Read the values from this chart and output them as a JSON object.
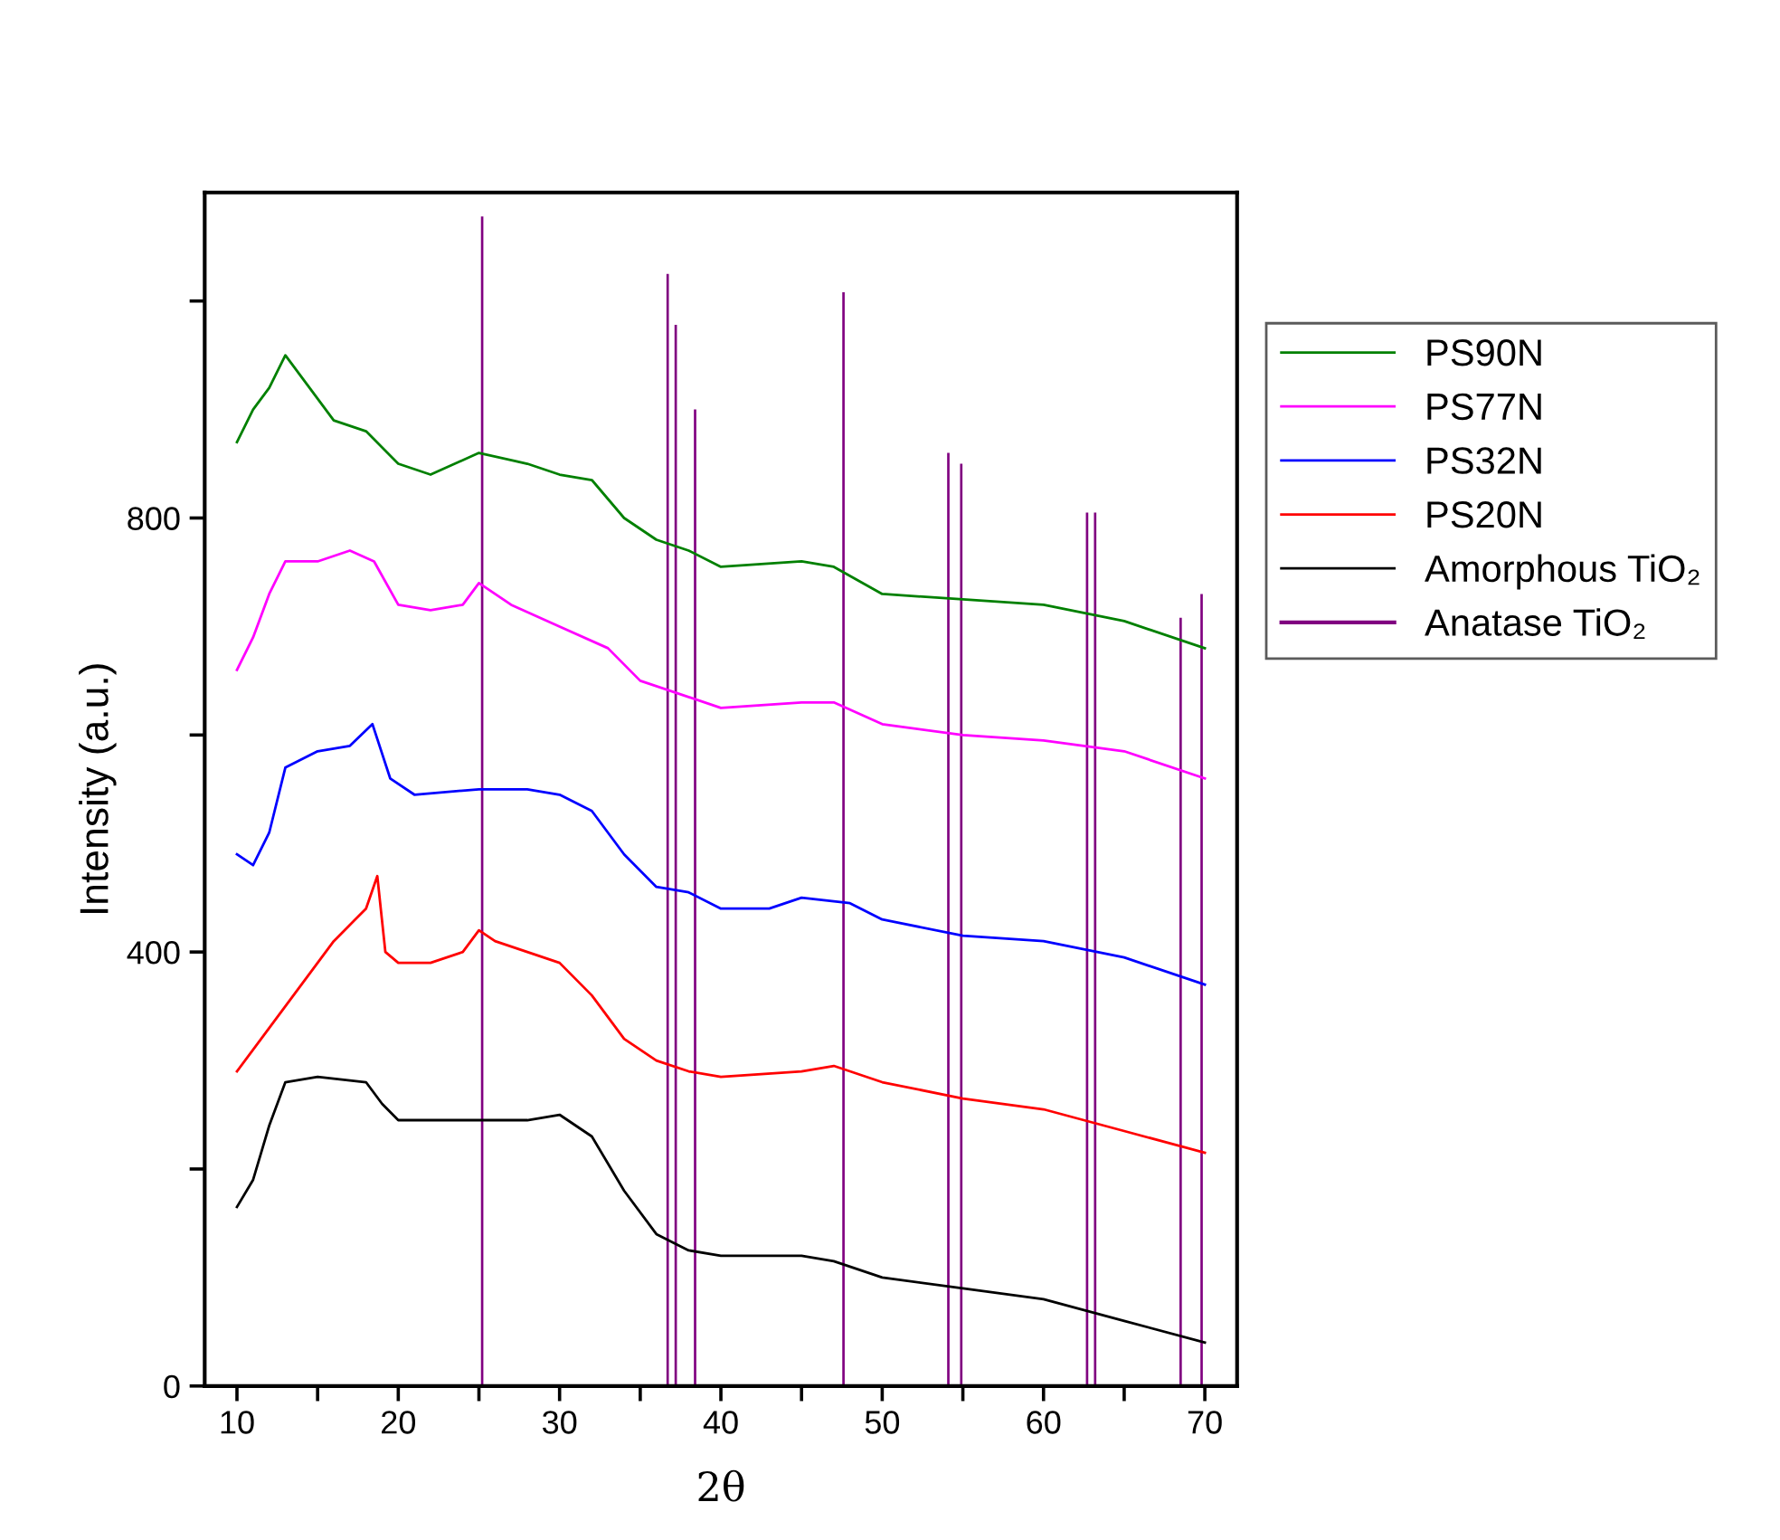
{
  "chart_data": {
    "type": "line",
    "xlabel": "2θ",
    "ylabel": "Intensity (a.u.)",
    "xlim": [
      8,
      72
    ],
    "ylim": [
      0,
      1100
    ],
    "xticks": [
      10,
      {
        "value": 15,
        "label": null
      },
      20,
      {
        "value": 25,
        "label": null
      },
      30,
      {
        "value": 35,
        "label": null
      },
      40,
      {
        "value": 45,
        "label": null
      },
      50,
      {
        "value": 55,
        "label": null
      },
      60,
      {
        "value": 65,
        "label": null
      },
      70
    ],
    "yticks": [
      0,
      {
        "value": 200,
        "label": null
      },
      400,
      {
        "value": 600,
        "label": null
      },
      800,
      {
        "value": 1000,
        "label": null
      }
    ],
    "grid": false,
    "legend": "right",
    "marker": "none",
    "line_style": "solid",
    "series": [
      {
        "name": "PS90N",
        "color": "#008000",
        "x": [
          10,
          11,
          12,
          13,
          14,
          16,
          18,
          20,
          22,
          25,
          28,
          30,
          32,
          34,
          36,
          38,
          40,
          45,
          47,
          50,
          55,
          60,
          65,
          70
        ],
        "values": [
          870,
          900,
          920,
          950,
          930,
          890,
          880,
          850,
          840,
          860,
          850,
          840,
          835,
          800,
          780,
          770,
          755,
          760,
          755,
          730,
          725,
          720,
          705,
          680
        ]
      },
      {
        "name": "PS77N",
        "color": "#ff00ff",
        "x": [
          10,
          11,
          12,
          13,
          15,
          17,
          18.5,
          20,
          22,
          24,
          25,
          27,
          30,
          33,
          35,
          37,
          40,
          45,
          47,
          50,
          55,
          60,
          65,
          70
        ],
        "values": [
          660,
          690,
          730,
          760,
          760,
          770,
          760,
          720,
          715,
          720,
          740,
          720,
          700,
          680,
          650,
          640,
          625,
          630,
          630,
          610,
          600,
          595,
          585,
          560
        ]
      },
      {
        "name": "PS32N",
        "color": "#0000ff",
        "x": [
          10,
          11,
          12,
          13,
          15,
          17,
          18.4,
          19.5,
          21,
          25,
          28,
          30,
          32,
          34,
          36,
          38,
          40,
          43,
          45,
          48,
          50,
          55,
          60,
          65,
          70
        ],
        "values": [
          490,
          480,
          510,
          570,
          585,
          590,
          610,
          560,
          545,
          550,
          550,
          545,
          530,
          490,
          460,
          455,
          440,
          440,
          450,
          445,
          430,
          415,
          410,
          395,
          370
        ]
      },
      {
        "name": "PS20N",
        "color": "#ff0000",
        "x": [
          10,
          12,
          14,
          16,
          18,
          18.7,
          19.2,
          20,
          22,
          24,
          25,
          26,
          28,
          30,
          32,
          34,
          36,
          38,
          40,
          45,
          47,
          50,
          55,
          60,
          65,
          70
        ],
        "values": [
          290,
          330,
          370,
          410,
          440,
          470,
          400,
          390,
          390,
          400,
          420,
          410,
          400,
          390,
          360,
          320,
          300,
          290,
          285,
          290,
          295,
          280,
          265,
          255,
          235,
          215
        ]
      },
      {
        "name": "Amorphous TiO₂",
        "color": "#000000",
        "x": [
          10,
          11,
          12,
          13,
          15,
          18,
          19,
          20,
          24,
          28,
          30,
          32,
          34,
          36,
          38,
          40,
          45,
          47,
          50,
          55,
          60,
          65,
          70
        ],
        "values": [
          165,
          190,
          240,
          280,
          285,
          280,
          260,
          245,
          245,
          245,
          250,
          230,
          180,
          140,
          125,
          120,
          120,
          115,
          100,
          90,
          80,
          60,
          40
        ]
      },
      {
        "name": "Anatase TiO₂",
        "type": "bar",
        "color": "#800080",
        "x": [
          25.2,
          36.7,
          37.2,
          38.4,
          47.6,
          54.1,
          54.9,
          62.7,
          63.2,
          68.5,
          69.8
        ],
        "values": [
          1078,
          1025,
          978,
          900,
          1008,
          860,
          850,
          805,
          805,
          708,
          730
        ]
      }
    ]
  }
}
